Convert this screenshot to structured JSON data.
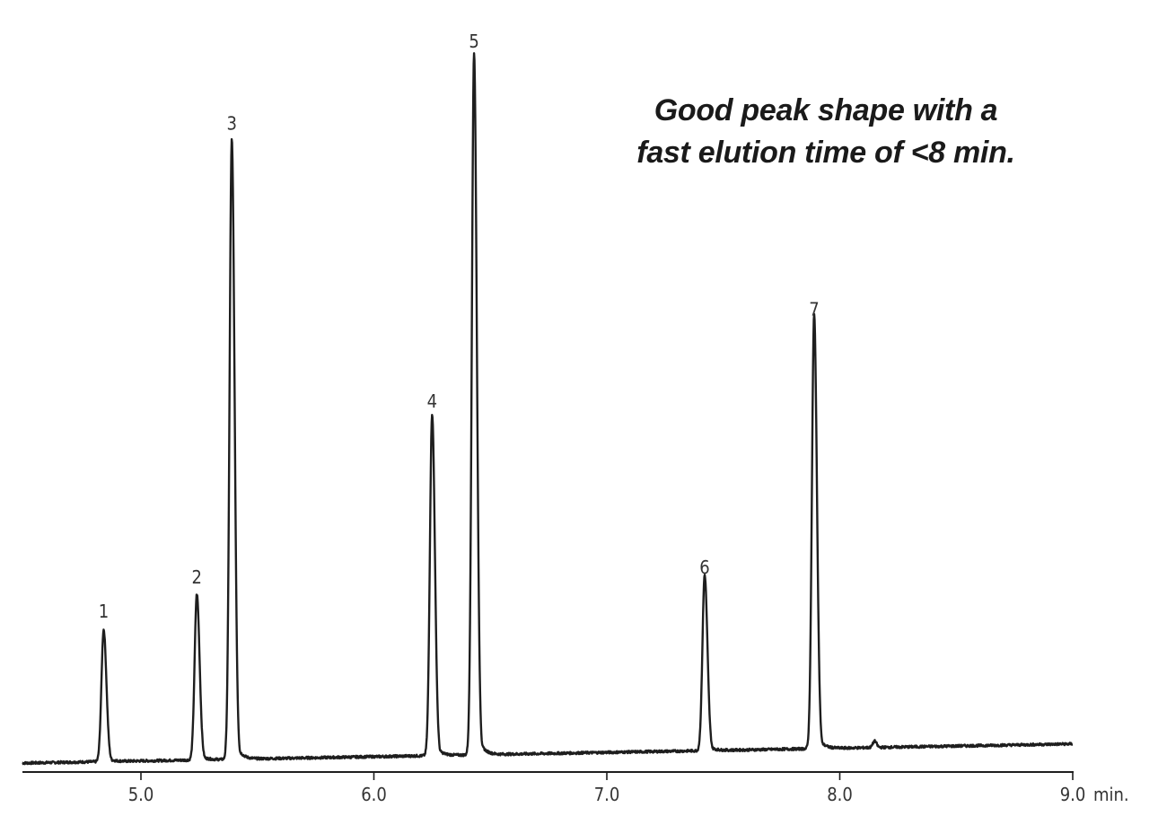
{
  "chart_data": {
    "type": "line",
    "title": "",
    "xlabel": "min.",
    "ylabel": "",
    "xlim": [
      4.5,
      9.0
    ],
    "ylim": [
      0,
      100
    ],
    "grid": false,
    "x_ticks": [
      5.0,
      6.0,
      7.0,
      8.0,
      9.0
    ],
    "x_tick_labels": [
      "5.0",
      "6.0",
      "7.0",
      "8.0",
      "9.0"
    ],
    "baseline": {
      "start": 0.0,
      "end": 2.7
    },
    "peaks": [
      {
        "label": "1",
        "time": 4.84,
        "height": 18.6
      },
      {
        "label": "2",
        "time": 5.24,
        "height": 23.4
      },
      {
        "label": "3",
        "time": 5.39,
        "height": 87.4
      },
      {
        "label": "4",
        "time": 6.25,
        "height": 48.2
      },
      {
        "label": "5",
        "time": 6.43,
        "height": 99.0
      },
      {
        "label": "6",
        "time": 7.42,
        "height": 24.8
      },
      {
        "label": "7",
        "time": 7.89,
        "height": 61.2
      }
    ],
    "annotation": [
      "Good peak shape with a",
      "fast elution time of <8 min."
    ]
  }
}
